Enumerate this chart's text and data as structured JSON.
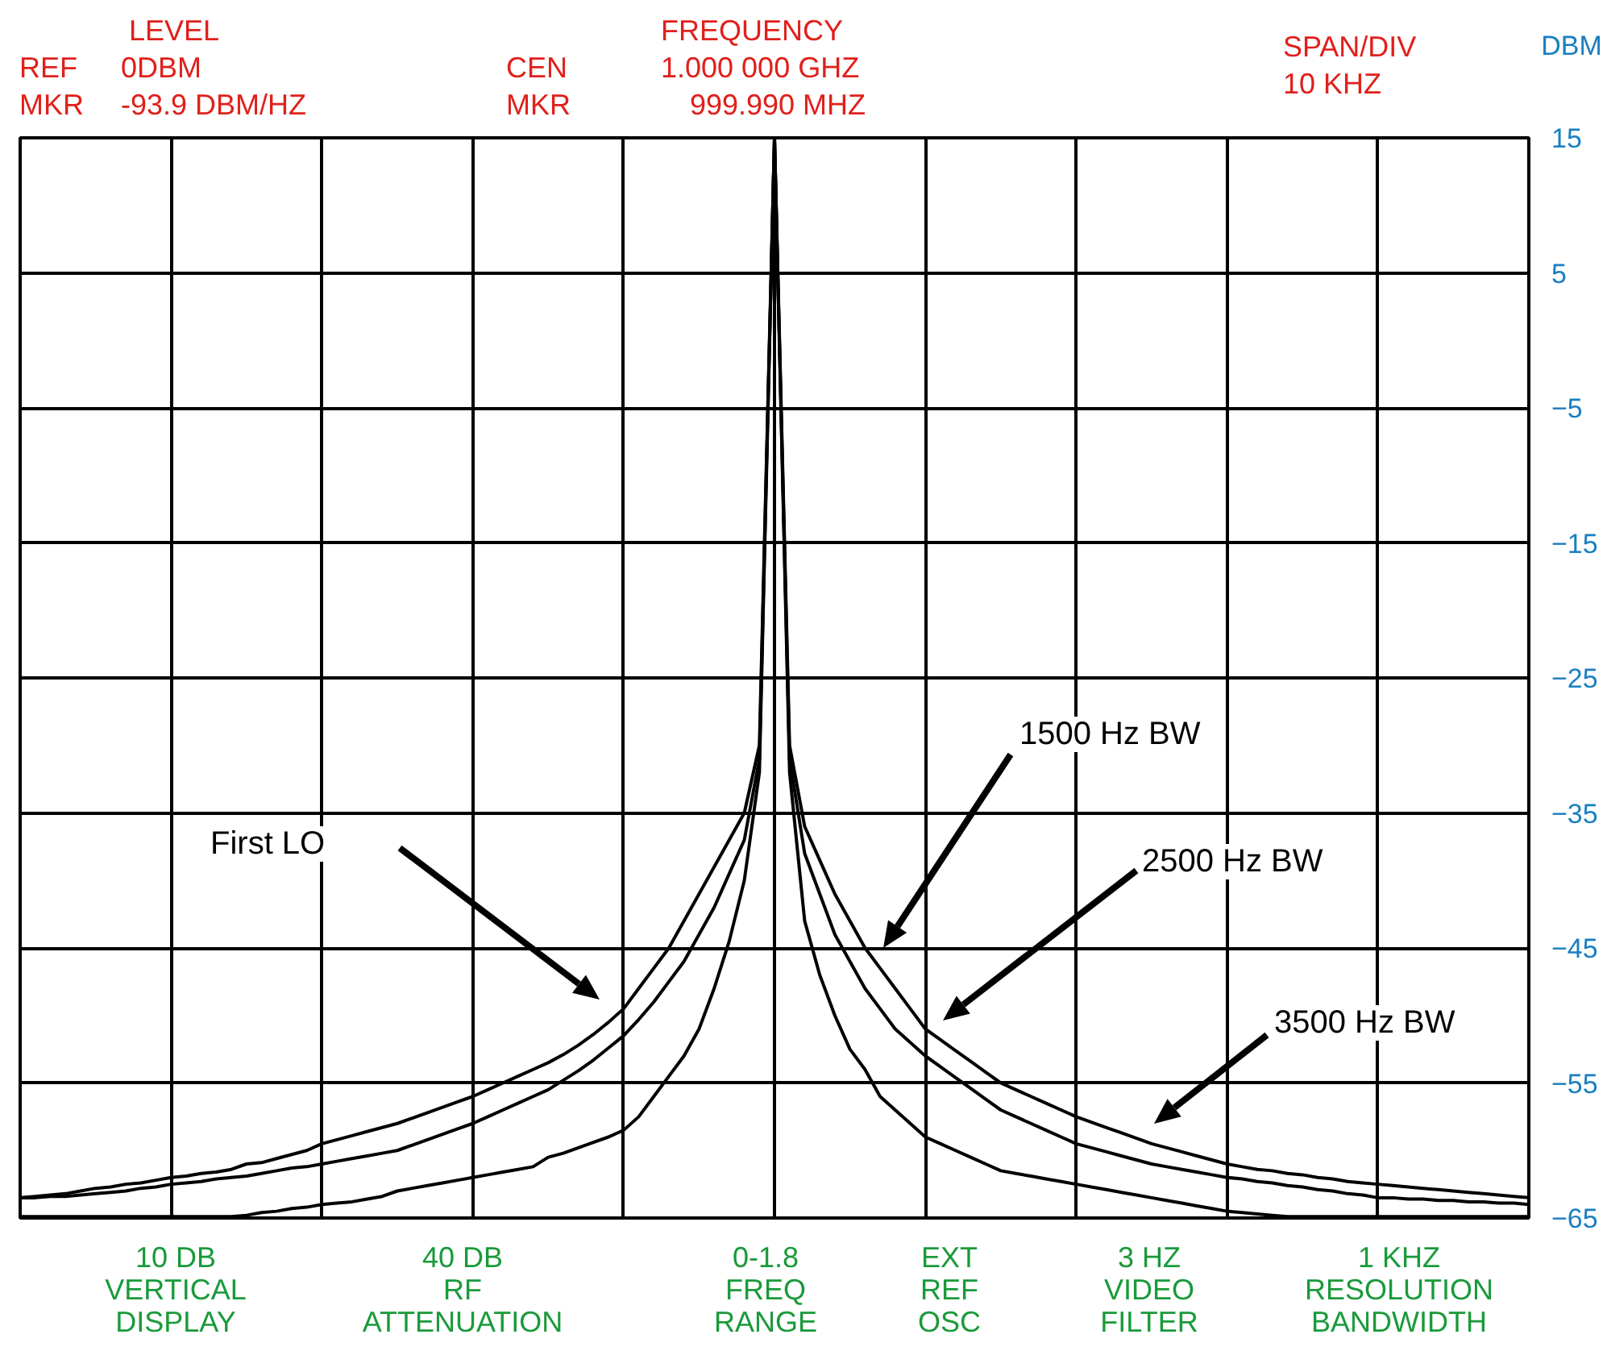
{
  "chart_data": {
    "type": "line",
    "ylabel": "DBM",
    "categories": [
      null,
      null,
      null,
      null,
      null,
      null,
      null,
      null,
      null,
      null,
      null,
      null,
      null,
      null,
      null,
      null,
      null,
      null,
      null,
      null,
      null,
      null,
      null,
      null,
      null,
      null,
      null,
      null,
      null,
      null,
      null,
      null,
      null,
      null,
      null,
      null,
      null,
      null,
      null,
      null,
      null,
      null,
      null,
      null,
      null,
      null,
      null,
      null,
      null,
      null,
      null,
      null,
      null,
      null,
      null,
      null,
      null,
      null,
      null,
      null,
      null,
      null,
      null,
      null,
      null,
      null,
      null,
      null,
      null,
      null,
      null,
      null,
      null,
      null,
      null,
      null,
      null,
      null,
      null,
      null,
      null,
      null,
      null,
      null,
      null,
      null,
      null,
      null,
      null,
      null,
      null,
      null,
      null,
      null,
      null,
      null,
      null,
      null,
      null,
      null,
      null
    ],
    "series": [
      {
        "color": "#000000",
        "values": [
          -63.5,
          -63.4,
          -63.3,
          -63.2,
          -63.0,
          -62.8,
          -62.7,
          -62.5,
          -62.4,
          -62.2,
          -62.0,
          -61.9,
          -61.7,
          -61.6,
          -61.4,
          -61.0,
          -60.9,
          -60.6,
          -60.3,
          -60.0,
          -59.5,
          -59.2,
          -58.9,
          -58.6,
          -58.3,
          -58.0,
          -57.6,
          -57.2,
          -56.8,
          -56.4,
          -56.0,
          -55.5,
          -55.0,
          -54.5,
          -54.0,
          -53.5,
          -52.9,
          -52.2,
          -51.4,
          -50.5,
          -49.5,
          -48.0,
          -46.5,
          -45.0,
          -43.0,
          -41.0,
          -39.0,
          -37.0,
          -35.0,
          -30.0,
          15,
          -30,
          -36,
          -38.5,
          -41,
          -43,
          -45,
          -46.5,
          -48,
          -49.5,
          -51,
          -51.8,
          -52.6,
          -53.4,
          -54.2,
          -55,
          -55.5,
          -56,
          -56.5,
          -57,
          -57.5,
          -57.9,
          -58.3,
          -58.7,
          -59.1,
          -59.5,
          -59.8,
          -60.1,
          -60.4,
          -60.7,
          -61,
          -61.2,
          -61.4,
          -61.5,
          -61.7,
          -61.8,
          -62,
          -62.1,
          -62.3,
          -62.4,
          -62.5,
          -62.6,
          -62.7,
          -62.8,
          -62.9,
          -63,
          -63.1,
          -63.2,
          -63.3,
          -63.4,
          -63.5
        ]
      },
      {
        "color": "#000000",
        "values": [
          -63.5,
          -63.5,
          -63.4,
          -63.4,
          -63.3,
          -63.2,
          -63.1,
          -63.0,
          -62.8,
          -62.7,
          -62.5,
          -62.4,
          -62.3,
          -62.1,
          -62.0,
          -61.9,
          -61.7,
          -61.5,
          -61.3,
          -61.2,
          -61.0,
          -60.8,
          -60.6,
          -60.4,
          -60.2,
          -60.0,
          -59.6,
          -59.2,
          -58.8,
          -58.4,
          -58.0,
          -57.5,
          -57.0,
          -56.5,
          -56.0,
          -55.5,
          -54.8,
          -54.1,
          -53.3,
          -52.4,
          -51.5,
          -50.3,
          -49.0,
          -47.5,
          -46.0,
          -44.0,
          -42.0,
          -39.5,
          -37.0,
          -31.0,
          15,
          -31,
          -38,
          -41,
          -44,
          -46,
          -48,
          -49.5,
          -51,
          -52,
          -53,
          -53.8,
          -54.6,
          -55.4,
          -56.2,
          -57,
          -57.5,
          -58,
          -58.5,
          -59,
          -59.5,
          -59.8,
          -60.1,
          -60.4,
          -60.7,
          -61,
          -61.2,
          -61.4,
          -61.6,
          -61.8,
          -62,
          -62.1,
          -62.3,
          -62.4,
          -62.6,
          -62.7,
          -62.9,
          -63,
          -63.2,
          -63.3,
          -63.5,
          -63.5,
          -63.6,
          -63.6,
          -63.7,
          -63.7,
          -63.8,
          -63.8,
          -63.9,
          -63.9,
          -64
        ]
      },
      {
        "color": "#000000",
        "values": [
          -64.9,
          -64.9,
          -64.9,
          -64.9,
          -64.9,
          -64.9,
          -64.9,
          -64.9,
          -64.9,
          -64.9,
          -64.9,
          -64.9,
          -64.9,
          -64.9,
          -64.9,
          -64.8,
          -64.6,
          -64.5,
          -64.3,
          -64.2,
          -64.0,
          -63.9,
          -63.8,
          -63.6,
          -63.4,
          -63.0,
          -62.8,
          -62.6,
          -62.4,
          -62.2,
          -62.0,
          -61.8,
          -61.6,
          -61.4,
          -61.2,
          -60.5,
          -60.2,
          -59.8,
          -59.4,
          -59.0,
          -58.5,
          -57.5,
          -56.0,
          -54.5,
          -53.0,
          -51.0,
          -48.0,
          -44.5,
          -40.0,
          -32.0,
          15,
          -32,
          -43,
          -47,
          -50,
          -52.5,
          -54,
          -56,
          -57,
          -58,
          -59,
          -59.5,
          -60,
          -60.5,
          -61,
          -61.5,
          -61.7,
          -61.9,
          -62.1,
          -62.3,
          -62.5,
          -62.7,
          -62.9,
          -63.1,
          -63.3,
          -63.5,
          -63.7,
          -63.9,
          -64.1,
          -64.3,
          -64.5,
          -64.6,
          -64.7,
          -64.8,
          -64.9,
          -64.9,
          -64.9,
          -64.9,
          -64.9,
          -64.9,
          -64.9,
          -64.9,
          -64.9,
          -64.9,
          -64.9,
          -64.9,
          -64.9,
          -64.9,
          -64.9,
          -64.9,
          -64.9
        ]
      }
    ],
    "ylim": [
      -65,
      15
    ],
    "yticks": [
      15,
      5,
      -5,
      -15,
      -25,
      -35,
      -45,
      -55,
      -65
    ],
    "grid": true,
    "tick_labels": "y",
    "line_style": "solid",
    "annotations": [
      "LEVEL",
      "REF",
      "0DBM",
      "MKR",
      "-93.9 DBM/HZ",
      "CEN",
      "FREQUENCY",
      "1.000 000 GHZ",
      "MKR",
      "999.990 MHZ",
      "SPAN/DIV",
      "10 KHZ",
      "10 DB\nVERTICAL\nDISPLAY",
      "40 DB\nRF\nATTENUATION",
      "0-1.8\nFREQ\nRANGE",
      "EXT\nREF\nOSC",
      "3 HZ\nVIDEO\nFILTER",
      "1 KHZ\nRESOLUTION\nBANDWIDTH",
      "First LO",
      "1500 Hz BW",
      "2500 Hz BW",
      "3500 Hz BW"
    ]
  }
}
